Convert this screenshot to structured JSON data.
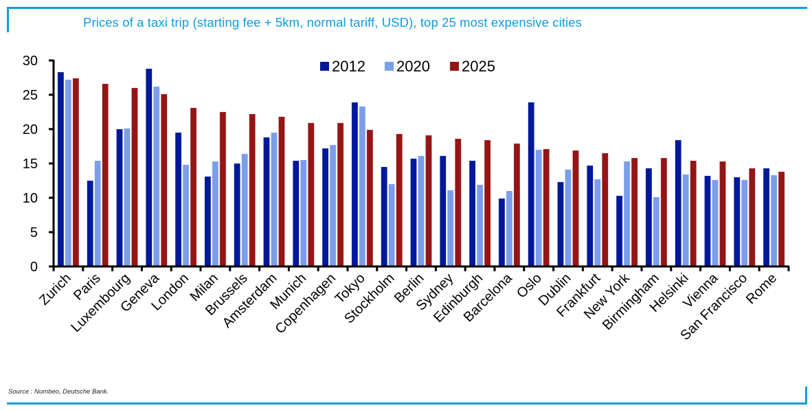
{
  "title": "Prices of a taxi trip (starting fee + 5km, normal tariff, USD), top 25 most expensive cities",
  "source": "Source : Numbeo, Deutsche Bank.",
  "colors": {
    "frame": "#0d9ddb",
    "title": "#0d9ddb",
    "s2012": "#00189a",
    "s2020": "#7b9dea",
    "s2025": "#951516"
  },
  "chart_data": {
    "type": "bar",
    "title": "Prices of a taxi trip (starting fee + 5km, normal tariff, USD), top 25 most expensive cities",
    "xlabel": "",
    "ylabel": "",
    "ylim": [
      0,
      30
    ],
    "yticks": [
      0,
      5,
      10,
      15,
      20,
      25,
      30
    ],
    "grid": false,
    "legend_position": "top-center",
    "categories": [
      "Zurich",
      "Paris",
      "Luxembourg",
      "Geneva",
      "London",
      "Milan",
      "Brussels",
      "Amsterdam",
      "Munich",
      "Copenhagen",
      "Tokyo",
      "Stockholm",
      "Berlin",
      "Sydney",
      "Edinburgh",
      "Barcelona",
      "Oslo",
      "Dublin",
      "Frankfurt",
      "New York",
      "Birmingham",
      "Helsinki",
      "Vienna",
      "San Francisco",
      "Rome"
    ],
    "series": [
      {
        "name": "2012",
        "color": "#00189a",
        "values": [
          28.3,
          12.5,
          20.0,
          28.8,
          19.5,
          13.1,
          15.0,
          18.8,
          15.4,
          17.2,
          23.9,
          14.5,
          15.7,
          16.1,
          15.4,
          9.9,
          23.9,
          12.3,
          14.7,
          10.3,
          14.3,
          18.4,
          13.2,
          13.0,
          14.3
        ]
      },
      {
        "name": "2020",
        "color": "#7b9dea",
        "values": [
          27.2,
          15.4,
          20.1,
          26.2,
          14.8,
          15.3,
          16.4,
          19.5,
          15.5,
          17.7,
          23.3,
          12.0,
          16.1,
          11.1,
          11.9,
          11.0,
          17.0,
          14.1,
          12.7,
          15.3,
          10.1,
          13.4,
          12.6,
          12.6,
          13.3
        ]
      },
      {
        "name": "2025",
        "color": "#951516",
        "values": [
          27.4,
          26.6,
          26.0,
          25.1,
          23.1,
          22.5,
          22.2,
          21.8,
          20.9,
          20.9,
          19.9,
          19.3,
          19.1,
          18.6,
          18.4,
          17.9,
          17.1,
          16.9,
          16.5,
          15.8,
          15.8,
          15.4,
          15.3,
          14.3,
          13.8
        ]
      }
    ]
  }
}
